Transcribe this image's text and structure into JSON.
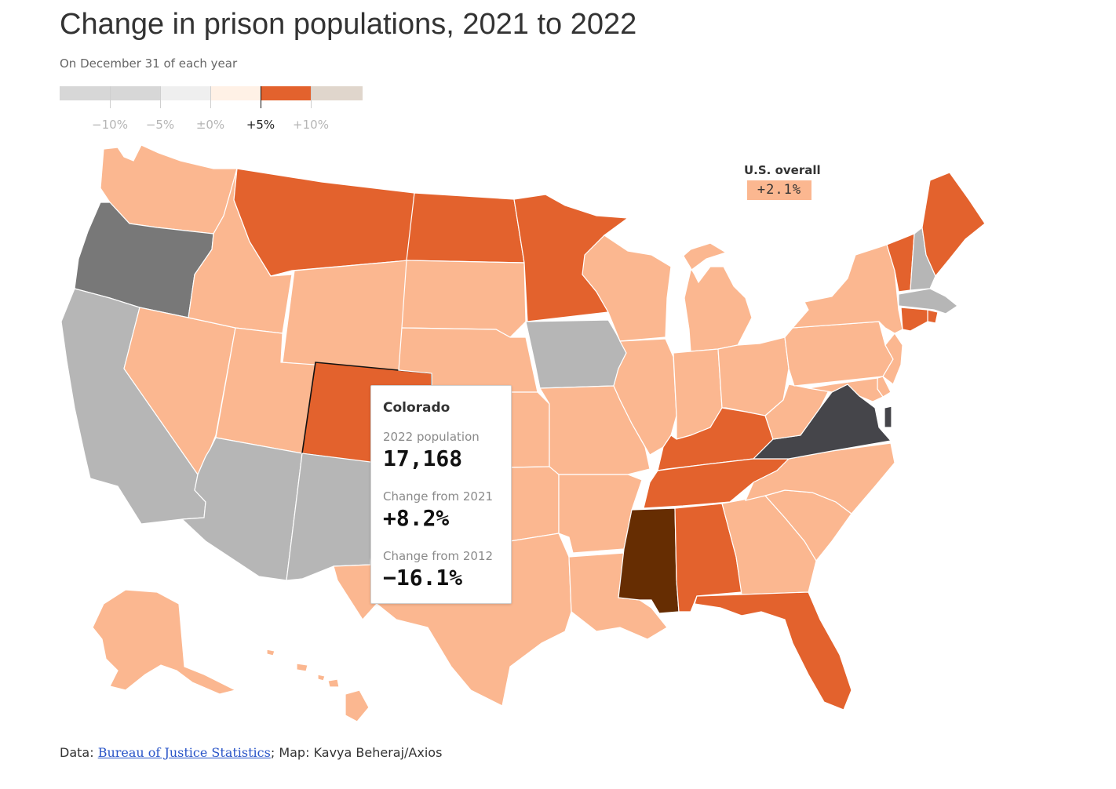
{
  "header": {
    "title": "Change in prison populations, 2021 to 2022",
    "subtitle": "On December 31 of each year"
  },
  "legend": {
    "labels": [
      "−10%",
      "−5%",
      "±0%",
      "+5%",
      "+10%"
    ],
    "colors": [
      "#d7d7d7",
      "#efefef",
      "#fff1e6",
      "#e3622d",
      "#e0d6cc"
    ],
    "active_label": "+5%"
  },
  "us_overall": {
    "label": "U.S. overall",
    "value": "+2.1%"
  },
  "tooltip": {
    "state": "Colorado",
    "pop_label": "2022 population",
    "pop_value": "17,168",
    "change2021_label": "Change from 2021",
    "change2021_value": "+8.2%",
    "change2012_label": "Change from 2012",
    "change2012_value": "−16.1%"
  },
  "source": {
    "data_prefix": "Data:",
    "data_link": "Bureau of Justice Statistics",
    "credit": "; Map: Kavya Beheraj/Axios"
  },
  "colors": {
    "light": "#fbb790",
    "orange": "#e3622d",
    "gray": "#b6b6b6",
    "darkgray": "#787878",
    "charcoal": "#45454a",
    "brown": "#662d02"
  },
  "states": [
    {
      "name": "Washington",
      "category": "light"
    },
    {
      "name": "Oregon",
      "category": "darkgray"
    },
    {
      "name": "California",
      "category": "gray"
    },
    {
      "name": "Nevada",
      "category": "light"
    },
    {
      "name": "Idaho",
      "category": "light"
    },
    {
      "name": "Montana",
      "category": "orange"
    },
    {
      "name": "Wyoming",
      "category": "light"
    },
    {
      "name": "Utah",
      "category": "light"
    },
    {
      "name": "Arizona",
      "category": "gray"
    },
    {
      "name": "Colorado",
      "category": "orange"
    },
    {
      "name": "New Mexico",
      "category": "gray"
    },
    {
      "name": "North Dakota",
      "category": "orange"
    },
    {
      "name": "South Dakota",
      "category": "light"
    },
    {
      "name": "Nebraska",
      "category": "light"
    },
    {
      "name": "Kansas",
      "category": "light"
    },
    {
      "name": "Oklahoma",
      "category": "light"
    },
    {
      "name": "Texas",
      "category": "light"
    },
    {
      "name": "Minnesota",
      "category": "orange"
    },
    {
      "name": "Iowa",
      "category": "gray"
    },
    {
      "name": "Missouri",
      "category": "light"
    },
    {
      "name": "Arkansas",
      "category": "light"
    },
    {
      "name": "Louisiana",
      "category": "light"
    },
    {
      "name": "Wisconsin",
      "category": "light"
    },
    {
      "name": "Illinois",
      "category": "light"
    },
    {
      "name": "Michigan",
      "category": "light"
    },
    {
      "name": "Indiana",
      "category": "light"
    },
    {
      "name": "Ohio",
      "category": "light"
    },
    {
      "name": "Kentucky",
      "category": "orange"
    },
    {
      "name": "Tennessee",
      "category": "orange"
    },
    {
      "name": "Mississippi",
      "category": "brown"
    },
    {
      "name": "Alabama",
      "category": "orange"
    },
    {
      "name": "Georgia",
      "category": "light"
    },
    {
      "name": "Florida",
      "category": "orange"
    },
    {
      "name": "South Carolina",
      "category": "light"
    },
    {
      "name": "North Carolina",
      "category": "light"
    },
    {
      "name": "Virginia",
      "category": "charcoal"
    },
    {
      "name": "West Virginia",
      "category": "light"
    },
    {
      "name": "Pennsylvania",
      "category": "light"
    },
    {
      "name": "New York",
      "category": "light"
    },
    {
      "name": "Vermont",
      "category": "orange"
    },
    {
      "name": "New Hampshire",
      "category": "gray"
    },
    {
      "name": "Maine",
      "category": "orange"
    },
    {
      "name": "Massachusetts",
      "category": "gray"
    },
    {
      "name": "Rhode Island",
      "category": "orange"
    },
    {
      "name": "Connecticut",
      "category": "orange"
    },
    {
      "name": "New Jersey",
      "category": "light"
    },
    {
      "name": "Delaware",
      "category": "light"
    },
    {
      "name": "Maryland",
      "category": "light"
    },
    {
      "name": "District of Columbia",
      "category": "charcoal"
    },
    {
      "name": "Alaska",
      "category": "light"
    },
    {
      "name": "Hawaii",
      "category": "light"
    }
  ]
}
